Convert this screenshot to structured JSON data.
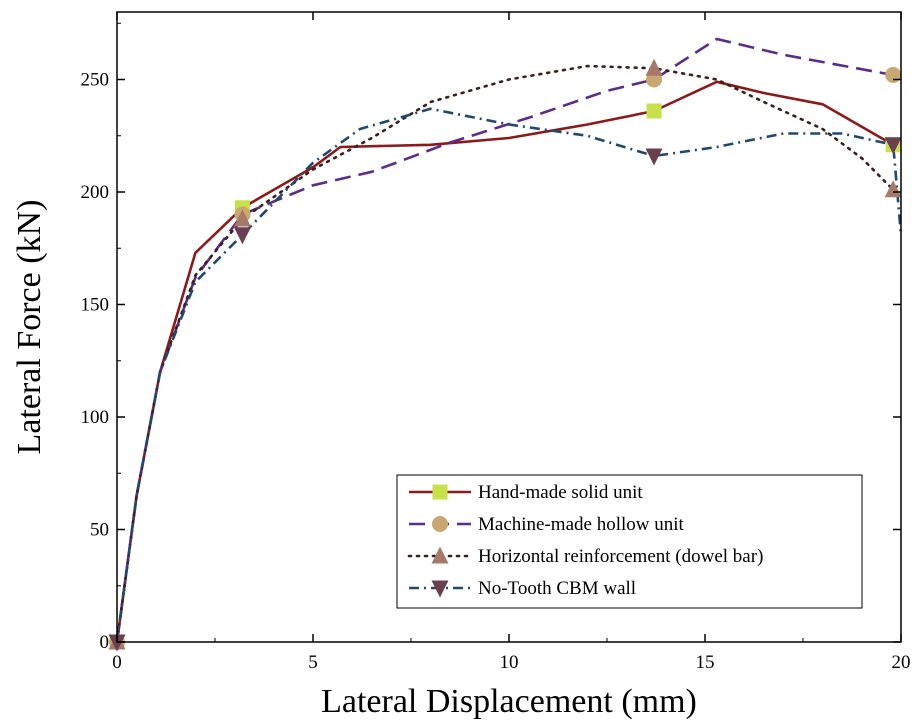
{
  "chart_data": {
    "type": "line",
    "title": "",
    "xlabel": "Lateral Displacement (mm)",
    "ylabel": "Lateral Force (kN)",
    "xlim": [
      0,
      20
    ],
    "ylim": [
      0,
      280
    ],
    "xticks": [
      0,
      5,
      10,
      15,
      20
    ],
    "yticks": [
      0,
      50,
      100,
      150,
      200,
      250
    ],
    "grid": false,
    "legend_position": "bottom-right",
    "series": [
      {
        "name": "Hand-made solid unit",
        "color": "#8b1a1a",
        "line_style": "solid",
        "marker": "square",
        "marker_color": "#c8e04a",
        "x": [
          0,
          0.5,
          1.1,
          2.0,
          3.2,
          5.0,
          5.7,
          8.0,
          10.0,
          12.0,
          13.7,
          15.3,
          16.5,
          18.0,
          19.8,
          20.0
        ],
        "y": [
          0,
          65,
          120,
          173,
          193,
          211,
          220,
          221,
          224,
          230,
          236,
          249,
          244,
          239,
          221,
          220
        ],
        "marker_x": [
          0,
          3.2,
          13.7,
          19.8
        ],
        "marker_y": [
          0,
          193,
          236,
          221
        ]
      },
      {
        "name": "Machine-made hollow unit",
        "color": "#5b2c8a",
        "line_style": "dash",
        "marker": "circle",
        "marker_color": "#c8a870",
        "x": [
          0,
          0.5,
          1.1,
          2.0,
          3.2,
          5.0,
          6.5,
          8.5,
          10.5,
          12.5,
          13.7,
          15.3,
          17.0,
          19.8
        ],
        "y": [
          0,
          65,
          120,
          162,
          190,
          203,
          209,
          222,
          233,
          245,
          250,
          268,
          261,
          252
        ],
        "marker_x": [
          0,
          3.2,
          13.7,
          19.8
        ],
        "marker_y": [
          0,
          190,
          250,
          252
        ]
      },
      {
        "name": "Horizontal reinforcement (dowel bar)",
        "color": "#3a1f1f",
        "line_style": "dot",
        "marker": "triangle-up",
        "marker_color": "#a57a6a",
        "x": [
          0,
          0.5,
          1.1,
          2.0,
          3.2,
          5.0,
          6.5,
          8.0,
          10.0,
          12.0,
          13.7,
          15.3,
          16.5,
          18.0,
          19.0,
          19.8,
          20.0
        ],
        "y": [
          0,
          65,
          120,
          163,
          188,
          210,
          224,
          240,
          250,
          256,
          255,
          250,
          240,
          228,
          215,
          201,
          198
        ],
        "marker_x": [
          0,
          3.2,
          13.7,
          19.8
        ],
        "marker_y": [
          0,
          188,
          255,
          201
        ]
      },
      {
        "name": "No-Tooth CBM wall",
        "color": "#1f4a6e",
        "line_style": "dashdot",
        "marker": "triangle-down",
        "marker_color": "#6a4050",
        "x": [
          0,
          0.5,
          1.1,
          2.0,
          3.2,
          5.0,
          6.2,
          8.0,
          10.0,
          12.0,
          13.7,
          15.3,
          17.0,
          18.5,
          19.8,
          20.0
        ],
        "y": [
          0,
          65,
          120,
          160,
          181,
          213,
          228,
          237,
          230,
          225,
          216,
          220,
          226,
          226,
          221,
          181
        ],
        "marker_x": [
          0,
          3.2,
          13.7,
          19.8
        ],
        "marker_y": [
          0,
          181,
          216,
          221
        ]
      }
    ]
  }
}
